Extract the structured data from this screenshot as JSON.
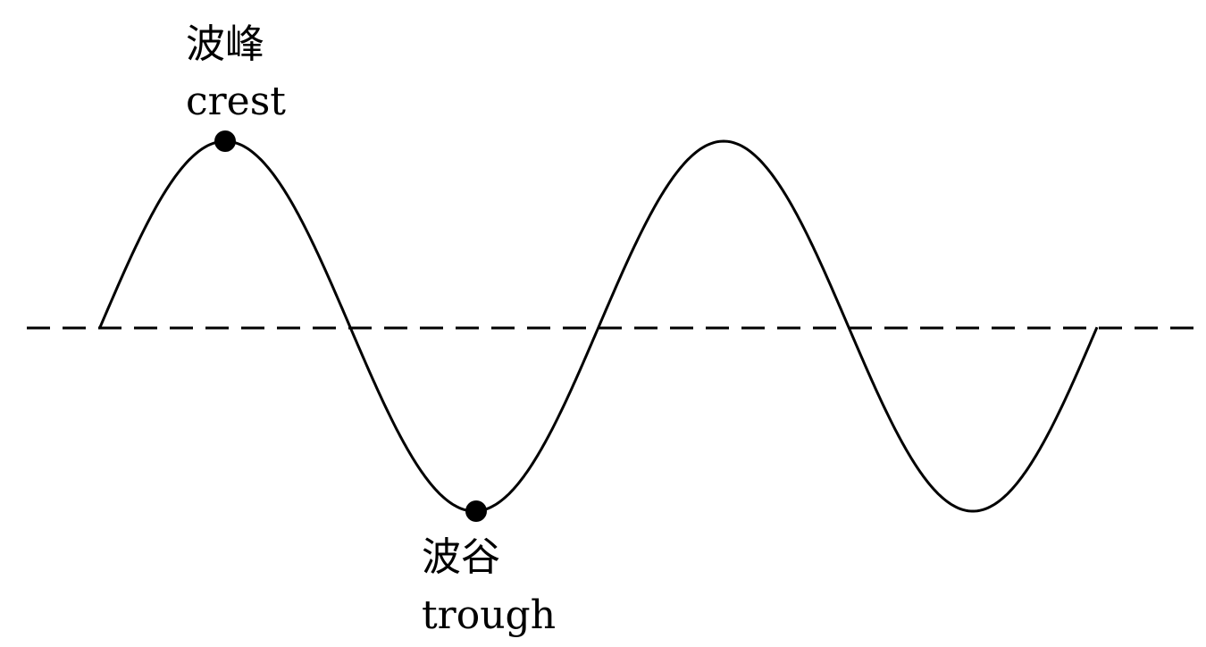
{
  "diagram": {
    "crest": {
      "label_zh": "波峰",
      "label_en": "crest"
    },
    "trough": {
      "label_zh": "波谷",
      "label_en": "trough"
    },
    "colors": {
      "stroke": "#000000",
      "background": "#ffffff"
    }
  }
}
